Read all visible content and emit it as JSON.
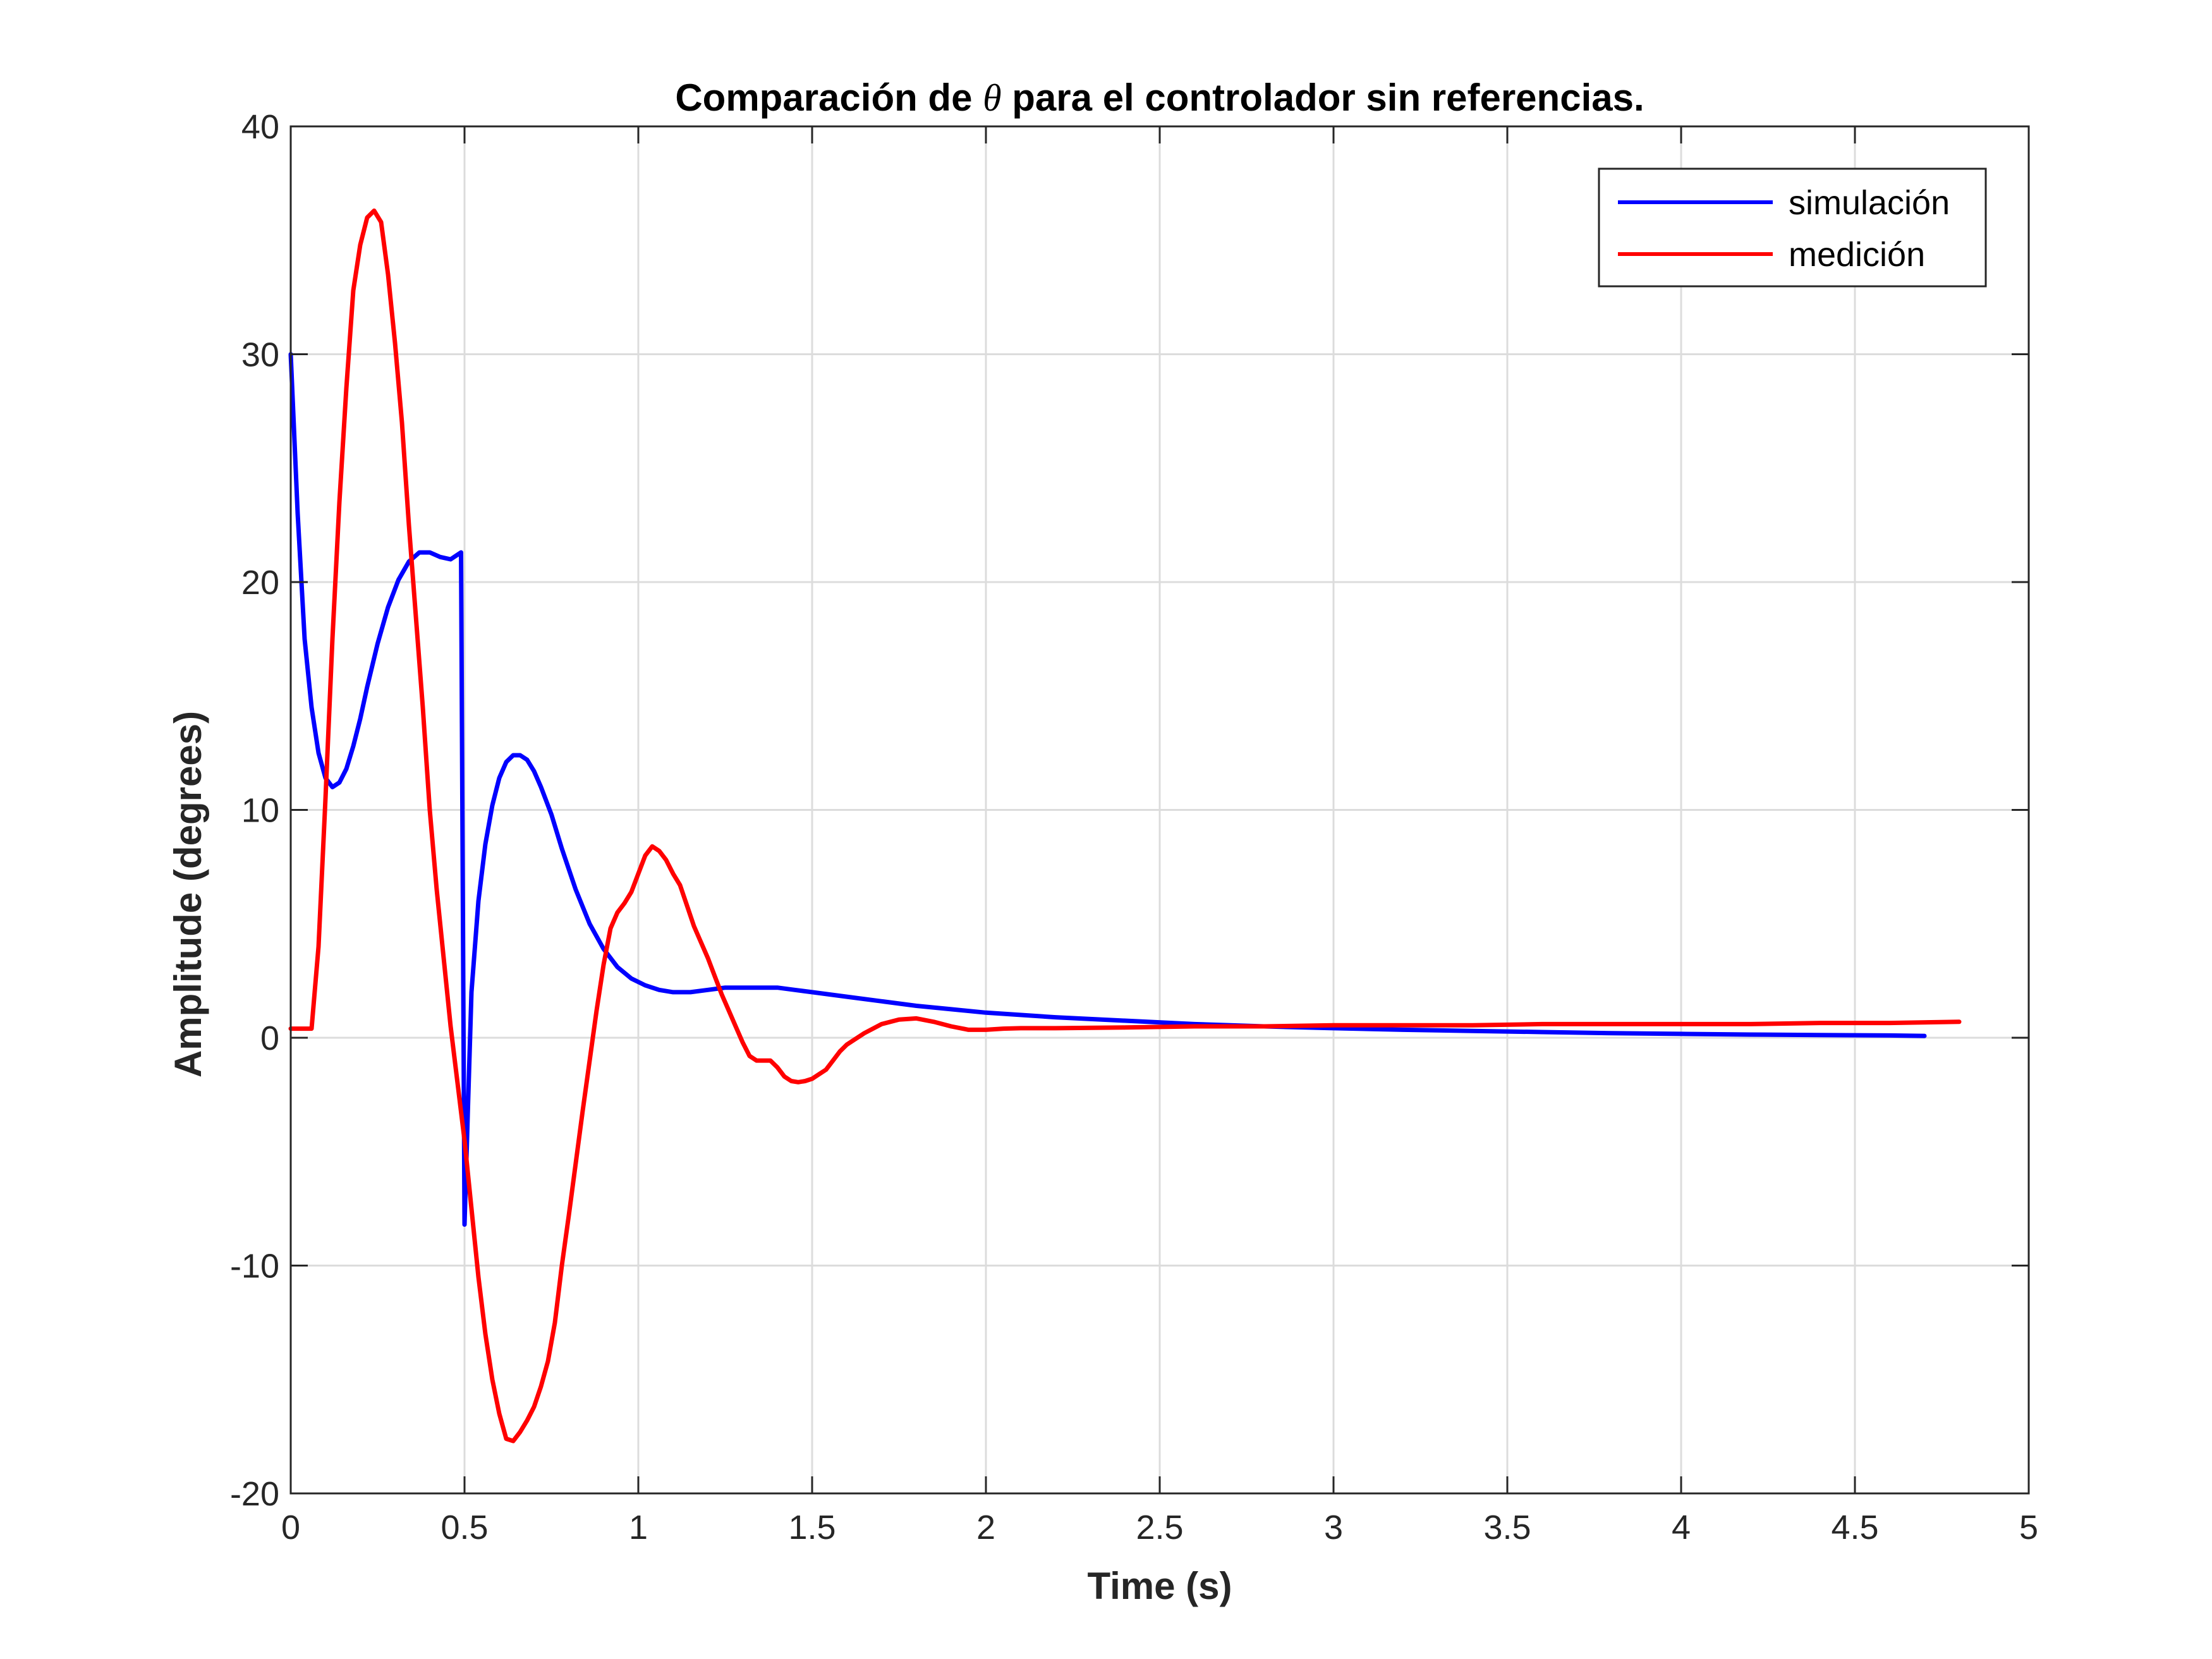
{
  "chart_data": {
    "type": "line",
    "title_prefix": "Comparación de ",
    "title_symbol": "θ",
    "title_suffix": " para el controlador sin referencias.",
    "xlabel": "Time (s)",
    "ylabel": "Amplitude (degrees)",
    "xlim": [
      0,
      5
    ],
    "ylim": [
      -20,
      40
    ],
    "xticks": [
      0,
      0.5,
      1,
      1.5,
      2,
      2.5,
      3,
      3.5,
      4,
      4.5,
      5
    ],
    "xtick_labels": [
      "0",
      "0.5",
      "1",
      "1.5",
      "2",
      "2.5",
      "3",
      "3.5",
      "4",
      "4.5",
      "5"
    ],
    "yticks": [
      -20,
      -10,
      0,
      10,
      20,
      30,
      40
    ],
    "ytick_labels": [
      "-20",
      "-10",
      "0",
      "10",
      "20",
      "30",
      "40"
    ],
    "grid": true,
    "legend_position": "top-right",
    "series": [
      {
        "name": "simulación",
        "color": "#0000ff",
        "x": [
          0,
          0.02,
          0.04,
          0.06,
          0.08,
          0.1,
          0.12,
          0.14,
          0.16,
          0.18,
          0.2,
          0.22,
          0.25,
          0.28,
          0.31,
          0.34,
          0.37,
          0.4,
          0.43,
          0.46,
          0.48,
          0.49,
          0.5,
          0.51,
          0.52,
          0.54,
          0.56,
          0.58,
          0.6,
          0.62,
          0.64,
          0.66,
          0.68,
          0.7,
          0.72,
          0.75,
          0.78,
          0.82,
          0.86,
          0.9,
          0.94,
          0.98,
          1.02,
          1.06,
          1.1,
          1.15,
          1.2,
          1.25,
          1.3,
          1.35,
          1.4,
          1.45,
          1.5,
          1.6,
          1.7,
          1.8,
          1.9,
          2.0,
          2.2,
          2.4,
          2.6,
          2.8,
          3.0,
          3.2,
          3.4,
          3.6,
          3.8,
          4.0,
          4.2,
          4.4,
          4.6,
          4.7
        ],
        "values": [
          30,
          23,
          17.5,
          14.5,
          12.5,
          11.4,
          11.0,
          11.2,
          11.8,
          12.8,
          14.0,
          15.4,
          17.3,
          18.9,
          20.1,
          20.9,
          21.3,
          21.3,
          21.1,
          21.0,
          21.2,
          21.3,
          -8.2,
          -3.0,
          2.0,
          6.0,
          8.5,
          10.2,
          11.4,
          12.1,
          12.4,
          12.4,
          12.2,
          11.7,
          11.0,
          9.8,
          8.3,
          6.5,
          5.0,
          3.9,
          3.1,
          2.6,
          2.3,
          2.1,
          2.0,
          2.0,
          2.1,
          2.2,
          2.2,
          2.2,
          2.2,
          2.1,
          2.0,
          1.8,
          1.6,
          1.4,
          1.25,
          1.1,
          0.9,
          0.75,
          0.6,
          0.5,
          0.42,
          0.35,
          0.3,
          0.25,
          0.2,
          0.17,
          0.14,
          0.12,
          0.1,
          0.08
        ]
      },
      {
        "name": "medición",
        "color": "#ff0000",
        "x": [
          0,
          0.02,
          0.04,
          0.06,
          0.08,
          0.1,
          0.12,
          0.14,
          0.16,
          0.18,
          0.2,
          0.22,
          0.24,
          0.26,
          0.28,
          0.3,
          0.32,
          0.34,
          0.36,
          0.38,
          0.4,
          0.42,
          0.44,
          0.46,
          0.48,
          0.5,
          0.52,
          0.54,
          0.56,
          0.58,
          0.6,
          0.62,
          0.64,
          0.66,
          0.68,
          0.7,
          0.72,
          0.74,
          0.76,
          0.78,
          0.8,
          0.82,
          0.84,
          0.86,
          0.88,
          0.9,
          0.92,
          0.94,
          0.96,
          0.98,
          1.0,
          1.02,
          1.04,
          1.06,
          1.08,
          1.1,
          1.12,
          1.14,
          1.16,
          1.18,
          1.2,
          1.22,
          1.24,
          1.26,
          1.28,
          1.3,
          1.32,
          1.34,
          1.36,
          1.38,
          1.4,
          1.42,
          1.44,
          1.46,
          1.48,
          1.5,
          1.52,
          1.54,
          1.56,
          1.58,
          1.6,
          1.65,
          1.7,
          1.75,
          1.8,
          1.85,
          1.9,
          1.95,
          2.0,
          2.05,
          2.1,
          2.2,
          2.4,
          2.6,
          2.8,
          3.0,
          3.2,
          3.4,
          3.6,
          3.8,
          4.0,
          4.2,
          4.4,
          4.6,
          4.8
        ],
        "values": [
          0.4,
          0.4,
          0.4,
          0.4,
          4.0,
          10.5,
          17.5,
          23.5,
          28.5,
          32.8,
          34.8,
          36.0,
          36.3,
          35.8,
          33.5,
          30.5,
          27.0,
          22.5,
          18.5,
          14.5,
          10.0,
          6.5,
          3.5,
          0.5,
          -2.0,
          -4.5,
          -7.5,
          -10.5,
          -13.0,
          -15.0,
          -16.5,
          -17.6,
          -17.7,
          -17.3,
          -16.8,
          -16.2,
          -15.3,
          -14.2,
          -12.5,
          -10.0,
          -7.8,
          -5.5,
          -3.2,
          -1.0,
          1.2,
          3.2,
          4.8,
          5.5,
          5.9,
          6.4,
          7.2,
          8.0,
          8.4,
          8.2,
          7.8,
          7.2,
          6.7,
          5.8,
          4.9,
          4.2,
          3.5,
          2.7,
          1.9,
          1.2,
          0.5,
          -0.2,
          -0.8,
          -1.0,
          -1.0,
          -1.0,
          -1.3,
          -1.7,
          -1.9,
          -1.95,
          -1.9,
          -1.8,
          -1.6,
          -1.4,
          -1.0,
          -0.6,
          -0.3,
          0.2,
          0.6,
          0.8,
          0.85,
          0.7,
          0.5,
          0.35,
          0.35,
          0.4,
          0.42,
          0.42,
          0.45,
          0.5,
          0.5,
          0.55,
          0.55,
          0.55,
          0.6,
          0.6,
          0.6,
          0.6,
          0.65,
          0.65,
          0.7
        ]
      }
    ]
  }
}
